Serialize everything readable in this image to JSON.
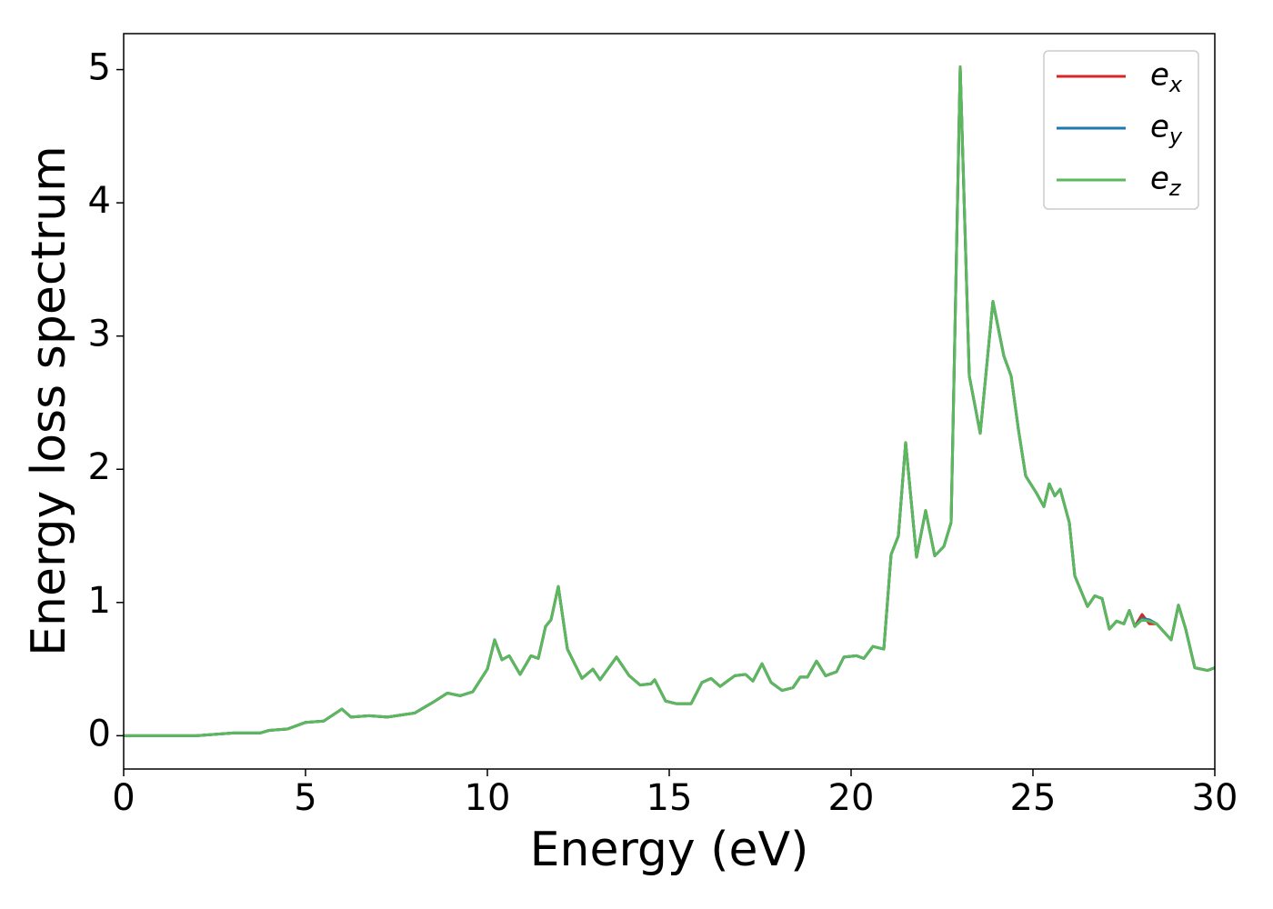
{
  "chart_data": {
    "type": "line",
    "xlabel": "Energy (eV)",
    "ylabel": "Energy loss spectrum",
    "x": [
      0,
      1,
      2,
      2.5,
      3,
      3.5,
      3.75,
      4,
      4.5,
      5,
      5.5,
      6,
      6.25,
      6.75,
      7.25,
      7.75,
      8,
      8.5,
      8.9,
      9.25,
      9.6,
      10,
      10.2,
      10.4,
      10.6,
      10.9,
      11.2,
      11.4,
      11.6,
      11.75,
      11.95,
      12.2,
      12.6,
      12.9,
      13.1,
      13.55,
      13.9,
      14.2,
      14.5,
      14.6,
      14.9,
      15.2,
      15.6,
      15.9,
      16.15,
      16.4,
      16.8,
      17.1,
      17.3,
      17.55,
      17.8,
      18.1,
      18.4,
      18.6,
      18.8,
      19.05,
      19.3,
      19.6,
      19.8,
      20.15,
      20.35,
      20.6,
      20.9,
      21.1,
      21.3,
      21.5,
      21.8,
      22.05,
      22.3,
      22.55,
      22.75,
      23.0,
      23.25,
      23.55,
      23.9,
      24.2,
      24.4,
      24.6,
      24.8,
      25.1,
      25.3,
      25.45,
      25.6,
      25.75,
      26,
      26.15,
      26.5,
      26.7,
      26.9,
      27.1,
      27.3,
      27.5,
      27.65,
      27.8,
      28,
      28.2,
      28.4,
      28.8,
      29,
      29.2,
      29.45,
      29.8,
      30
    ],
    "series": [
      {
        "name": "ex",
        "color": "#d62728",
        "values": [
          0,
          0,
          0,
          0.01,
          0.02,
          0.02,
          0.02,
          0.04,
          0.05,
          0.1,
          0.11,
          0.2,
          0.14,
          0.15,
          0.14,
          0.16,
          0.17,
          0.25,
          0.32,
          0.3,
          0.33,
          0.5,
          0.72,
          0.57,
          0.6,
          0.46,
          0.6,
          0.58,
          0.82,
          0.87,
          1.12,
          0.65,
          0.43,
          0.5,
          0.42,
          0.59,
          0.45,
          0.38,
          0.39,
          0.42,
          0.26,
          0.24,
          0.24,
          0.4,
          0.43,
          0.37,
          0.45,
          0.46,
          0.41,
          0.54,
          0.4,
          0.34,
          0.36,
          0.44,
          0.44,
          0.56,
          0.45,
          0.48,
          0.59,
          0.6,
          0.58,
          0.67,
          0.65,
          1.36,
          1.5,
          2.2,
          1.34,
          1.69,
          1.35,
          1.42,
          1.6,
          5.02,
          2.7,
          2.27,
          3.26,
          2.85,
          2.7,
          2.3,
          1.95,
          1.82,
          1.72,
          1.89,
          1.8,
          1.85,
          1.6,
          1.2,
          0.97,
          1.05,
          1.03,
          0.8,
          0.86,
          0.84,
          0.94,
          0.82,
          0.91,
          0.84,
          0.84,
          0.72,
          0.98,
          0.8,
          0.51,
          0.49,
          0.51
        ]
      },
      {
        "name": "ey",
        "color": "#1f77b4",
        "values": [
          0,
          0,
          0,
          0.01,
          0.02,
          0.02,
          0.02,
          0.04,
          0.05,
          0.1,
          0.11,
          0.2,
          0.14,
          0.15,
          0.14,
          0.16,
          0.17,
          0.25,
          0.32,
          0.3,
          0.33,
          0.5,
          0.72,
          0.57,
          0.6,
          0.46,
          0.6,
          0.58,
          0.82,
          0.87,
          1.12,
          0.65,
          0.43,
          0.5,
          0.42,
          0.59,
          0.45,
          0.38,
          0.39,
          0.42,
          0.26,
          0.24,
          0.24,
          0.4,
          0.43,
          0.37,
          0.45,
          0.46,
          0.41,
          0.54,
          0.4,
          0.34,
          0.36,
          0.44,
          0.44,
          0.56,
          0.45,
          0.48,
          0.59,
          0.6,
          0.58,
          0.67,
          0.65,
          1.36,
          1.5,
          2.2,
          1.34,
          1.69,
          1.35,
          1.42,
          1.6,
          5.02,
          2.7,
          2.27,
          3.26,
          2.85,
          2.7,
          2.3,
          1.95,
          1.82,
          1.72,
          1.89,
          1.8,
          1.85,
          1.6,
          1.2,
          0.97,
          1.05,
          1.03,
          0.8,
          0.86,
          0.84,
          0.94,
          0.82,
          0.88,
          0.87,
          0.84,
          0.72,
          0.98,
          0.8,
          0.51,
          0.49,
          0.51
        ]
      },
      {
        "name": "ez",
        "color": "#5cb85c",
        "values": [
          0,
          0,
          0,
          0.01,
          0.02,
          0.02,
          0.02,
          0.04,
          0.05,
          0.1,
          0.11,
          0.2,
          0.14,
          0.15,
          0.14,
          0.16,
          0.17,
          0.25,
          0.32,
          0.3,
          0.33,
          0.5,
          0.72,
          0.57,
          0.6,
          0.46,
          0.6,
          0.58,
          0.82,
          0.87,
          1.12,
          0.65,
          0.43,
          0.5,
          0.42,
          0.59,
          0.45,
          0.38,
          0.39,
          0.42,
          0.26,
          0.24,
          0.24,
          0.4,
          0.43,
          0.37,
          0.45,
          0.46,
          0.41,
          0.54,
          0.4,
          0.34,
          0.36,
          0.44,
          0.44,
          0.56,
          0.45,
          0.48,
          0.59,
          0.6,
          0.58,
          0.67,
          0.65,
          1.36,
          1.5,
          2.2,
          1.34,
          1.69,
          1.35,
          1.42,
          1.6,
          5.02,
          2.7,
          2.27,
          3.26,
          2.85,
          2.7,
          2.3,
          1.95,
          1.82,
          1.72,
          1.89,
          1.8,
          1.85,
          1.6,
          1.2,
          0.97,
          1.05,
          1.03,
          0.8,
          0.86,
          0.84,
          0.94,
          0.82,
          0.87,
          0.86,
          0.84,
          0.72,
          0.98,
          0.8,
          0.51,
          0.49,
          0.51
        ]
      }
    ],
    "xlim": [
      0,
      30
    ],
    "xticks": [
      0,
      5,
      10,
      15,
      20,
      25,
      30
    ],
    "ylim": [
      -0.25,
      5.27
    ],
    "yticks": [
      0,
      1,
      2,
      3,
      4,
      5
    ],
    "grid": false,
    "legend": "upper right"
  }
}
